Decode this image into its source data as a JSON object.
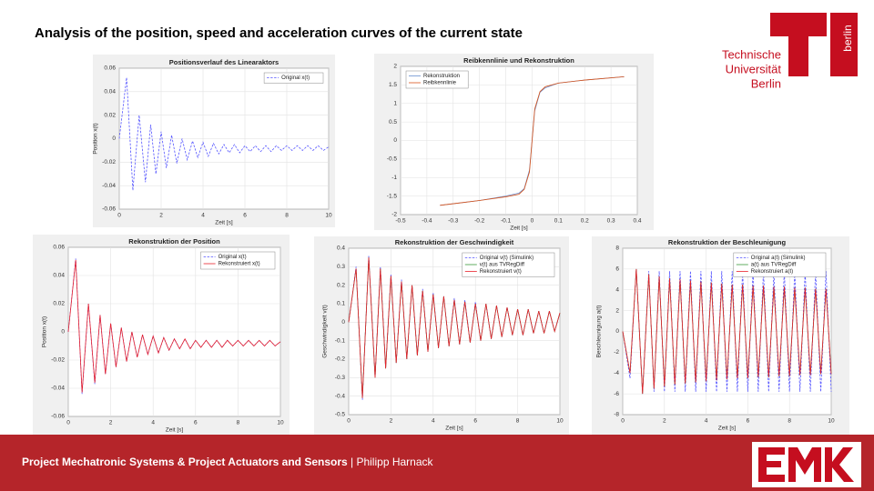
{
  "header": {
    "title": "Analysis of the position, speed and acceleration curves of the current state"
  },
  "logo": {
    "line1": "Technische",
    "line2": "Universität",
    "line3": "Berlin",
    "vertical": "berlin"
  },
  "footer": {
    "project": "Project Mechatronic Systems & Project Actuators and Sensors",
    "author": "| Philipp Harnack"
  },
  "chart_data": [
    {
      "type": "line",
      "title": "Positionsverlauf des Linearaktors",
      "x_label": "Zeit [s]",
      "y_label": "Position x(t)",
      "grid": true,
      "legend": "upper right",
      "x": [
        0,
        0.35,
        0.65,
        0.95,
        1.25,
        1.5,
        1.75,
        2,
        2.25,
        2.5,
        2.75,
        3,
        3.25,
        3.5,
        3.75,
        4,
        4.25,
        4.5,
        4.75,
        5,
        5.25,
        5.5,
        5.75,
        6,
        6.25,
        6.5,
        6.75,
        7,
        7.25,
        7.5,
        7.75,
        8,
        8.25,
        8.5,
        8.75,
        9,
        9.25,
        9.5,
        9.75,
        10
      ],
      "series": [
        {
          "name": "Original x(t)",
          "color": "#5555ff",
          "style": "dashed",
          "values": [
            0,
            0.052,
            -0.044,
            0.02,
            -0.037,
            0.012,
            -0.03,
            0.006,
            -0.025,
            0.003,
            -0.021,
            0,
            -0.018,
            -0.002,
            -0.016,
            -0.003,
            -0.015,
            -0.004,
            -0.013,
            -0.005,
            -0.012,
            -0.005,
            -0.012,
            -0.006,
            -0.011,
            -0.006,
            -0.011,
            -0.006,
            -0.011,
            -0.006,
            -0.01,
            -0.006,
            -0.01,
            -0.006,
            -0.01,
            -0.006,
            -0.01,
            -0.006,
            -0.01,
            -0.007
          ]
        }
      ],
      "xlim": [
        0,
        10
      ],
      "xticks": [
        0,
        2,
        4,
        6,
        8,
        10
      ],
      "ylim": [
        -0.06,
        0.06
      ],
      "yticks": [
        -0.06,
        -0.04,
        -0.02,
        0,
        0.02,
        0.04,
        0.06
      ]
    },
    {
      "type": "line",
      "title": "Reibkennlinie und Rekonstruktion",
      "x_label": "Zeit [s]",
      "grid": true,
      "legend": "upper left",
      "x": [
        -0.35,
        -0.2,
        -0.1,
        -0.05,
        -0.03,
        -0.01,
        0,
        0.01,
        0.03,
        0.05,
        0.1,
        0.2,
        0.35
      ],
      "series": [
        {
          "name": "Rekonstruktion",
          "color": "#6a8fd0",
          "style": "solid",
          "values": [
            -1.75,
            -1.62,
            -1.5,
            -1.42,
            -1.3,
            -0.8,
            0,
            0.8,
            1.3,
            1.42,
            1.55,
            1.63,
            1.72
          ]
        },
        {
          "name": "Reibkennlinie",
          "color": "#d9541a",
          "style": "solid",
          "values": [
            -1.75,
            -1.62,
            -1.52,
            -1.45,
            -1.32,
            -0.85,
            0,
            0.85,
            1.32,
            1.45,
            1.55,
            1.63,
            1.72
          ]
        }
      ],
      "xlim": [
        -0.5,
        0.4
      ],
      "xticks": [
        -0.5,
        -0.4,
        -0.3,
        -0.2,
        -0.1,
        0,
        0.1,
        0.2,
        0.3,
        0.4
      ],
      "ylim": [
        -2,
        2
      ],
      "yticks": [
        -2,
        -1.5,
        -1,
        -0.5,
        0,
        0.5,
        1,
        1.5,
        2
      ]
    },
    {
      "type": "line",
      "title": "Rekonstruktion der Position",
      "x_label": "Zeit [s]",
      "y_label": "Position x(t)",
      "grid": true,
      "legend": "upper right",
      "x": [
        0,
        0.35,
        0.65,
        0.95,
        1.25,
        1.5,
        1.75,
        2,
        2.25,
        2.5,
        2.75,
        3,
        3.25,
        3.5,
        3.75,
        4,
        4.25,
        4.5,
        4.75,
        5,
        5.25,
        5.5,
        5.75,
        6,
        6.25,
        6.5,
        6.75,
        7,
        7.25,
        7.5,
        7.75,
        8,
        8.25,
        8.5,
        8.75,
        9,
        9.25,
        9.5,
        9.75,
        10
      ],
      "series": [
        {
          "name": "Original x(t)",
          "color": "#5555ff",
          "style": "dashed",
          "values": [
            0,
            0.052,
            -0.044,
            0.02,
            -0.037,
            0.012,
            -0.03,
            0.006,
            -0.025,
            0.003,
            -0.021,
            0,
            -0.018,
            -0.002,
            -0.016,
            -0.003,
            -0.015,
            -0.004,
            -0.013,
            -0.005,
            -0.012,
            -0.005,
            -0.012,
            -0.006,
            -0.011,
            -0.006,
            -0.011,
            -0.006,
            -0.011,
            -0.006,
            -0.01,
            -0.006,
            -0.01,
            -0.006,
            -0.01,
            -0.006,
            -0.01,
            -0.006,
            -0.01,
            -0.007
          ]
        },
        {
          "name": "Rekonstruiert x(t)",
          "color": "#e8202a",
          "style": "solid",
          "values": [
            0,
            0.051,
            -0.043,
            0.02,
            -0.036,
            0.012,
            -0.03,
            0.006,
            -0.025,
            0.003,
            -0.021,
            0,
            -0.018,
            -0.002,
            -0.016,
            -0.003,
            -0.015,
            -0.004,
            -0.013,
            -0.005,
            -0.012,
            -0.005,
            -0.012,
            -0.006,
            -0.011,
            -0.006,
            -0.011,
            -0.006,
            -0.011,
            -0.006,
            -0.01,
            -0.006,
            -0.01,
            -0.006,
            -0.01,
            -0.006,
            -0.01,
            -0.006,
            -0.01,
            -0.007
          ]
        }
      ],
      "xlim": [
        0,
        10
      ],
      "xticks": [
        0,
        2,
        4,
        6,
        8,
        10
      ],
      "ylim": [
        -0.06,
        0.06
      ],
      "yticks": [
        -0.06,
        -0.04,
        -0.02,
        0,
        0.02,
        0.04,
        0.06
      ]
    },
    {
      "type": "line",
      "title": "Rekonstruktion der Geschwindigkeit",
      "x_label": "Zeit [s]",
      "y_label": "Geschwindigkeit v(t)",
      "grid": true,
      "legend": "upper right",
      "x": [
        0,
        0.35,
        0.65,
        0.95,
        1.25,
        1.5,
        1.75,
        2,
        2.25,
        2.5,
        2.75,
        3,
        3.25,
        3.5,
        3.75,
        4,
        4.25,
        4.5,
        4.75,
        5,
        5.25,
        5.5,
        5.75,
        6,
        6.25,
        6.5,
        6.75,
        7,
        7.25,
        7.5,
        7.75,
        8,
        8.25,
        8.5,
        8.75,
        9,
        9.25,
        9.5,
        9.75,
        10
      ],
      "series": [
        {
          "name": "Original v(t) (Simulink)",
          "color": "#5555ff",
          "style": "dashed",
          "values": [
            0,
            0.3,
            -0.42,
            0.36,
            -0.3,
            0.3,
            -0.25,
            0.26,
            -0.22,
            0.23,
            -0.2,
            0.2,
            -0.18,
            0.18,
            -0.16,
            0.16,
            -0.14,
            0.14,
            -0.13,
            0.13,
            -0.12,
            0.12,
            -0.11,
            0.11,
            -0.1,
            0.1,
            -0.09,
            0.09,
            -0.08,
            0.08,
            -0.07,
            0.07,
            -0.07,
            0.07,
            -0.06,
            0.06,
            -0.06,
            0.06,
            -0.05,
            0.05
          ]
        },
        {
          "name": "v(t) aus TVRegDiff",
          "color": "#3a9a3a",
          "style": "solid",
          "values": [
            0,
            0.29,
            -0.41,
            0.35,
            -0.3,
            0.29,
            -0.25,
            0.25,
            -0.22,
            0.22,
            -0.2,
            0.2,
            -0.18,
            0.17,
            -0.16,
            0.15,
            -0.14,
            0.14,
            -0.13,
            0.12,
            -0.12,
            0.11,
            -0.11,
            0.1,
            -0.1,
            0.1,
            -0.09,
            0.09,
            -0.08,
            0.08,
            -0.07,
            0.07,
            -0.07,
            0.07,
            -0.06,
            0.06,
            -0.06,
            0.06,
            -0.05,
            0.05
          ]
        },
        {
          "name": "Rekonstruiert v(t)",
          "color": "#e8202a",
          "style": "solid",
          "values": [
            0,
            0.29,
            -0.41,
            0.35,
            -0.3,
            0.29,
            -0.25,
            0.25,
            -0.22,
            0.22,
            -0.2,
            0.2,
            -0.18,
            0.17,
            -0.16,
            0.15,
            -0.14,
            0.14,
            -0.13,
            0.12,
            -0.12,
            0.11,
            -0.11,
            0.1,
            -0.1,
            0.1,
            -0.09,
            0.09,
            -0.08,
            0.08,
            -0.07,
            0.07,
            -0.07,
            0.07,
            -0.06,
            0.06,
            -0.06,
            0.06,
            -0.05,
            0.05
          ]
        }
      ],
      "xlim": [
        0,
        10
      ],
      "xticks": [
        0,
        2,
        4,
        6,
        8,
        10
      ],
      "ylim": [
        -0.5,
        0.4
      ],
      "yticks": [
        -0.5,
        -0.4,
        -0.3,
        -0.2,
        -0.1,
        0,
        0.1,
        0.2,
        0.3,
        0.4
      ]
    },
    {
      "type": "line",
      "title": "Rekonstruktion der Beschleunigung",
      "x_label": "Zeit [s]",
      "y_label": "Beschleunigung a(t)",
      "grid": true,
      "legend": "upper right",
      "x": [
        0,
        0.35,
        0.65,
        0.95,
        1.25,
        1.5,
        1.75,
        2,
        2.25,
        2.5,
        2.75,
        3,
        3.25,
        3.5,
        3.75,
        4,
        4.25,
        4.5,
        4.75,
        5,
        5.25,
        5.5,
        5.75,
        6,
        6.25,
        6.5,
        6.75,
        7,
        7.25,
        7.5,
        7.75,
        8,
        8.25,
        8.5,
        8.75,
        9,
        9.25,
        9.5,
        9.75,
        10
      ],
      "series": [
        {
          "name": "Original a(t) (Simulink)",
          "color": "#5555ff",
          "style": "dashed",
          "values": [
            0,
            -4.5,
            6,
            -6,
            5.8,
            -5.8,
            5.8,
            -5.8,
            5.8,
            -5.8,
            5.8,
            -5.8,
            5.8,
            -5.8,
            5.8,
            -5.8,
            5.8,
            -5.8,
            5.8,
            -5.8,
            5.8,
            -5.8,
            5.8,
            -5.8,
            5.8,
            -5.8,
            5.8,
            -5.8,
            5.8,
            -5.8,
            5.8,
            -5.8,
            5.8,
            -5.8,
            5.8,
            -5.8,
            5.8,
            -5.8,
            5.8,
            -5.8
          ]
        },
        {
          "name": "a(t) aus TVRegDiff",
          "color": "#3a9a3a",
          "style": "solid",
          "values": [
            0,
            -4,
            6,
            -6,
            5.5,
            -5.5,
            5.3,
            -5.3,
            5.1,
            -5.1,
            5,
            -5,
            4.9,
            -4.9,
            4.8,
            -4.8,
            4.7,
            -4.7,
            4.6,
            -4.6,
            4.5,
            -4.5,
            4.5,
            -4.5,
            4.4,
            -4.4,
            4.4,
            -4.4,
            4.3,
            -4.3,
            4.3,
            -4.3,
            4.2,
            -4.2,
            4.2,
            -4.2,
            4.1,
            -4.1,
            4.1,
            -4.1
          ]
        },
        {
          "name": "Rekonstruiert a(t)",
          "color": "#e8202a",
          "style": "solid",
          "values": [
            0,
            -4,
            6,
            -6,
            5.5,
            -5.5,
            5.3,
            -5.3,
            5.1,
            -5.1,
            5,
            -5,
            4.9,
            -4.9,
            4.8,
            -4.8,
            4.7,
            -4.7,
            4.6,
            -4.6,
            4.5,
            -4.5,
            4.5,
            -4.5,
            4.4,
            -4.4,
            4.4,
            -4.4,
            4.3,
            -4.3,
            4.3,
            -4.3,
            4.2,
            -4.2,
            4.2,
            -4.2,
            4.1,
            -4.1,
            4.1,
            -4.1
          ]
        }
      ],
      "xlim": [
        0,
        10
      ],
      "xticks": [
        0,
        2,
        4,
        6,
        8,
        10
      ],
      "ylim": [
        -8,
        8
      ],
      "yticks": [
        -8,
        -6,
        -4,
        -2,
        0,
        2,
        4,
        6,
        8
      ]
    }
  ]
}
